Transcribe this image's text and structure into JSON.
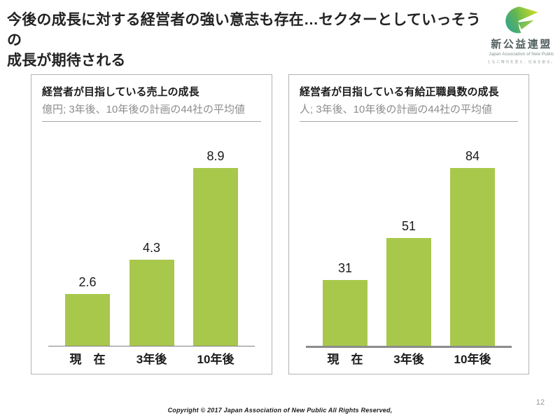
{
  "slide": {
    "title_line1": "今後の成長に対する経営者の強い意志も存在…セクターとしていっそうの",
    "title_line2": "成長が期待される",
    "footer": "Copyright © 2017 Japan Association of New Public  All Rights Reserved,",
    "page_number": "12"
  },
  "logo": {
    "org_name": "新公益連盟",
    "org_name_en": "Japan Association of New Public",
    "tagline": "ともに時代を変え、社会を創る。",
    "icon": "paper-plane-swoosh-icon",
    "brand_colors": {
      "teal": "#2aa198",
      "green": "#8dc63f",
      "yellow_green": "#d7df23"
    }
  },
  "chart_data": [
    {
      "type": "bar",
      "title": "経営者が目指している売上の成長",
      "subtitle": "億円; 3年後、10年後の計画の44社の平均値",
      "categories": [
        "現　在",
        "3年後",
        "10年後"
      ],
      "values": [
        2.6,
        4.3,
        8.9
      ],
      "value_labels": [
        "2.6",
        "4.3",
        "8.9"
      ],
      "unit": "億円",
      "bar_color": "#a8c84c",
      "axis_style": "thin",
      "grid": false,
      "legend": "none",
      "ylim": [
        0,
        9.5
      ]
    },
    {
      "type": "bar",
      "title": "経営者が目指している有給正職員数の成長",
      "subtitle": "人; 3年後、10年後の計画の44社の平均値",
      "categories": [
        "現　在",
        "3年後",
        "10年後"
      ],
      "values": [
        31,
        51,
        84
      ],
      "value_labels": [
        "31",
        "51",
        "84"
      ],
      "unit": "人",
      "bar_color": "#a8c84c",
      "axis_style": "thick",
      "grid": false,
      "legend": "none",
      "ylim": [
        0,
        90
      ]
    }
  ]
}
